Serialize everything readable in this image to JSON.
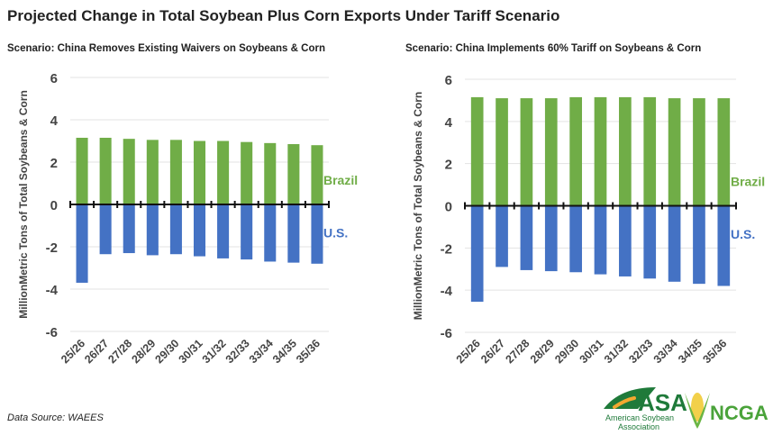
{
  "title": "Projected Change in Total Soybean Plus Corn Exports Under Tariff Scenario",
  "source": "Data Source: WAEES",
  "logo": {
    "asa": "ASA",
    "asa_sub": "American Soybean Association",
    "ncga": "NCGA"
  },
  "colors": {
    "brazil": "#70ad47",
    "us": "#4472c4"
  },
  "chart_data": [
    {
      "type": "bar",
      "stacked": true,
      "title": "Scenario: China Removes Existing Waivers on Soybeans & Corn",
      "ylabel": "MillionMetric Tons of Total Soybeans & Corn",
      "ylim": [
        -6,
        6
      ],
      "yticks": [
        "6",
        "4",
        "2",
        "0",
        "-2",
        "-4",
        "-6"
      ],
      "grid": true,
      "categories": [
        "25/26",
        "26/27",
        "27/28",
        "28/29",
        "29/30",
        "30/31",
        "31/32",
        "32/33",
        "33/34",
        "34/35",
        "35/36"
      ],
      "series": [
        {
          "name": "Brazil",
          "values": [
            3.15,
            3.15,
            3.1,
            3.05,
            3.05,
            3.0,
            3.0,
            2.95,
            2.9,
            2.85,
            2.8
          ]
        },
        {
          "name": "U.S.",
          "values": [
            -3.7,
            -2.35,
            -2.3,
            -2.4,
            -2.35,
            -2.45,
            -2.55,
            -2.6,
            -2.7,
            -2.75,
            -2.8
          ]
        }
      ]
    },
    {
      "type": "bar",
      "stacked": true,
      "title": "Scenario: China Implements 60% Tariff on Soybeans & Corn",
      "ylabel": "MillionMetric Tons of Total Soybeans & Corn",
      "ylim": [
        -6,
        6
      ],
      "yticks": [
        "6",
        "4",
        "2",
        "0",
        "-2",
        "-4",
        "-6"
      ],
      "grid": true,
      "categories": [
        "25/26",
        "26/27",
        "27/28",
        "28/29",
        "29/30",
        "30/31",
        "31/32",
        "32/33",
        "33/34",
        "34/35",
        "35/36"
      ],
      "series": [
        {
          "name": "Brazil",
          "values": [
            5.15,
            5.1,
            5.1,
            5.1,
            5.15,
            5.15,
            5.15,
            5.15,
            5.1,
            5.1,
            5.1
          ]
        },
        {
          "name": "U.S.",
          "values": [
            -4.55,
            -2.9,
            -3.05,
            -3.1,
            -3.15,
            -3.25,
            -3.35,
            -3.45,
            -3.6,
            -3.7,
            -3.8
          ]
        }
      ]
    }
  ]
}
